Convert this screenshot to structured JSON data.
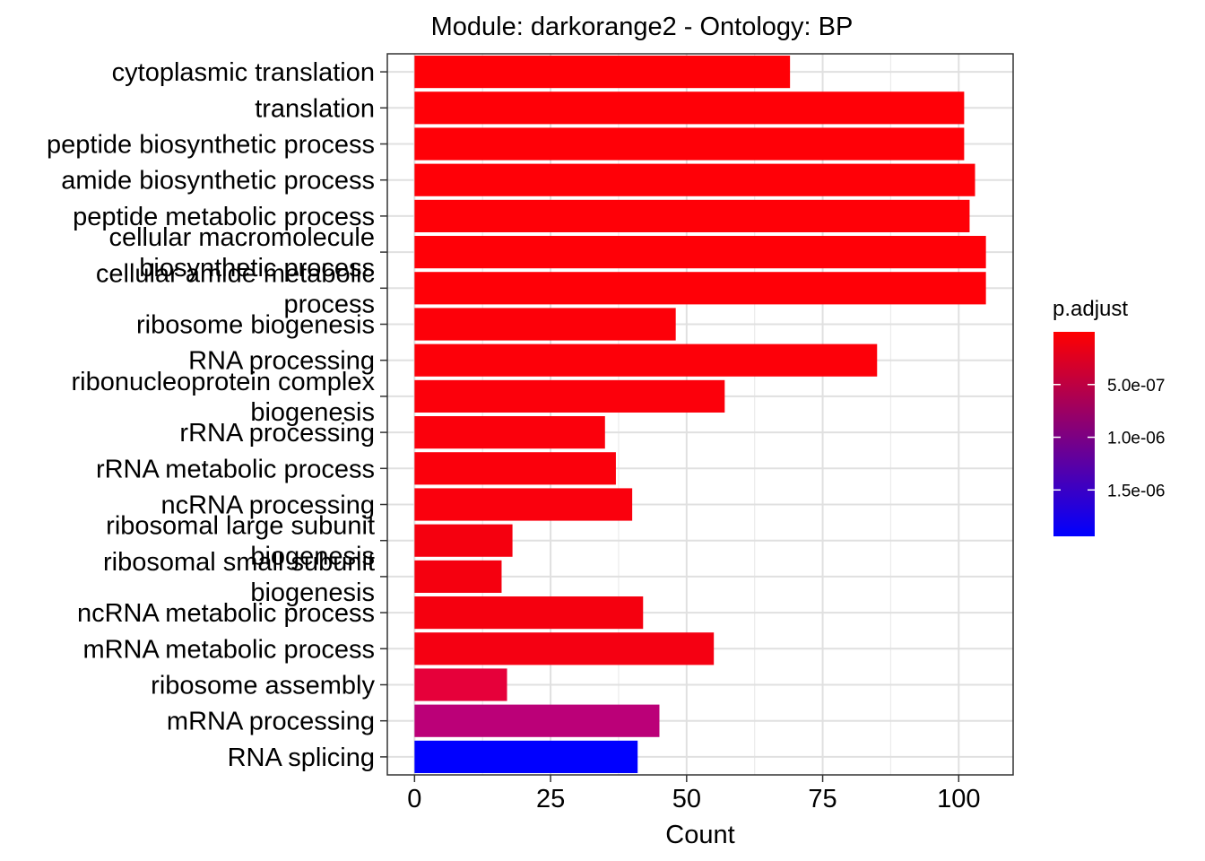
{
  "chart_data": {
    "type": "bar",
    "orientation": "horizontal",
    "title": "Module: darkorange2 - Ontology: BP",
    "xlabel": "Count",
    "ylabel": "",
    "xlim": [
      -5,
      110
    ],
    "x_ticks": [
      0,
      25,
      50,
      75,
      100
    ],
    "grid": true,
    "categories": [
      "cytoplasmic translation",
      "translation",
      "peptide biosynthetic process",
      "amide biosynthetic process",
      "peptide metabolic process",
      "cellular macromolecule biosynthetic process",
      "cellular amide metabolic process",
      "ribosome biogenesis",
      "RNA processing",
      "ribonucleoprotein complex biogenesis",
      "rRNA processing",
      "rRNA metabolic process",
      "ncRNA processing",
      "ribosomal large subunit biogenesis",
      "ribosomal small subunit biogenesis",
      "ncRNA metabolic process",
      "mRNA metabolic process",
      "ribosome assembly",
      "mRNA processing",
      "RNA splicing"
    ],
    "category_lines": [
      [
        "cytoplasmic translation"
      ],
      [
        "translation"
      ],
      [
        "peptide biosynthetic process"
      ],
      [
        "amide biosynthetic process"
      ],
      [
        "peptide metabolic process"
      ],
      [
        "cellular macromolecule",
        "biosynthetic process"
      ],
      [
        "cellular amide metabolic",
        "process"
      ],
      [
        "ribosome biogenesis"
      ],
      [
        "RNA processing"
      ],
      [
        "ribonucleoprotein complex",
        "biogenesis"
      ],
      [
        "rRNA processing"
      ],
      [
        "rRNA metabolic process"
      ],
      [
        "ncRNA processing"
      ],
      [
        "ribosomal large subunit",
        "biogenesis"
      ],
      [
        "ribosomal small subunit",
        "biogenesis"
      ],
      [
        "ncRNA metabolic process"
      ],
      [
        "mRNA metabolic process"
      ],
      [
        "ribosome assembly"
      ],
      [
        "mRNA processing"
      ],
      [
        "RNA splicing"
      ]
    ],
    "values": [
      69,
      101,
      101,
      103,
      102,
      105,
      105,
      48,
      85,
      57,
      35,
      37,
      40,
      18,
      16,
      42,
      55,
      17,
      45,
      41
    ],
    "bar_colors": [
      "#FF0006",
      "#FF0007",
      "#FF0007",
      "#FF0007",
      "#FF0007",
      "#FF0007",
      "#FF0007",
      "#FD0009",
      "#FD0009",
      "#FC000B",
      "#FB000C",
      "#FB000C",
      "#FA000D",
      "#F5000F",
      "#F5000F",
      "#F5000F",
      "#F50012",
      "#E6003A",
      "#BB0078",
      "#0000FF"
    ],
    "legend": {
      "title": "p.adjust",
      "position": "right",
      "tick_labels": [
        "5.0e-07",
        "1.0e-06",
        "1.5e-06"
      ],
      "tick_values": [
        5e-07,
        1e-06,
        1.5e-06
      ],
      "range": [
        1e-11,
        1.94e-06
      ],
      "color_low": "#FF0000",
      "color_high": "#0000FF"
    }
  }
}
